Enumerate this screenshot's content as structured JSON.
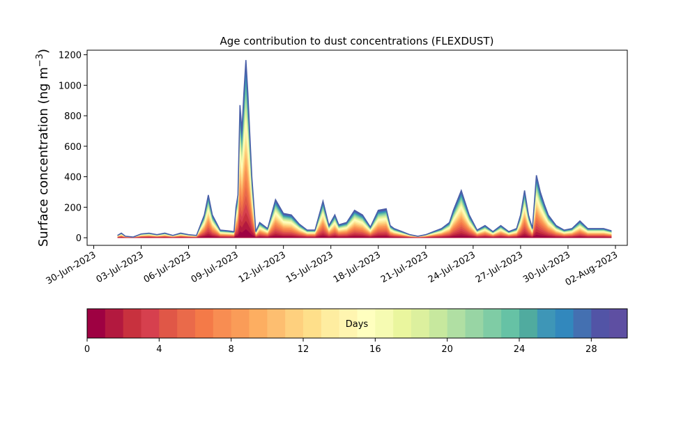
{
  "chart_data": {
    "type": "area",
    "title": "Age contribution to dust concentrations (FLEXDUST)",
    "xlabel": "",
    "ylabel": "Surface concentration (ng m",
    "ylabel_superscript": "−3",
    "ylabel_close": ")",
    "ylim": [
      -50,
      1230
    ],
    "yticks": [
      0,
      200,
      400,
      600,
      800,
      1000,
      1200
    ],
    "xlim": [
      "2023-06-29T14:00",
      "2023-08-02T18:00"
    ],
    "xtick_labels": [
      "30-Jun-2023",
      "03-Jul-2023",
      "06-Jul-2023",
      "09-Jul-2023",
      "12-Jul-2023",
      "15-Jul-2023",
      "18-Jul-2023",
      "21-Jul-2023",
      "24-Jul-2023",
      "27-Jul-2023",
      "30-Jul-2023",
      "02-Aug-2023"
    ],
    "grid": false,
    "stack_variable": "age (days)",
    "outline_color": "#4a5fa8",
    "total": {
      "x": [
        "2023-07-01T12:00",
        "2023-07-01T18:00",
        "2023-07-02T00:00",
        "2023-07-02T12:00",
        "2023-07-03T00:00",
        "2023-07-03T12:00",
        "2023-07-04T00:00",
        "2023-07-04T12:00",
        "2023-07-05T00:00",
        "2023-07-05T12:00",
        "2023-07-06T00:00",
        "2023-07-06T12:00",
        "2023-07-07T00:00",
        "2023-07-07T06:00",
        "2023-07-07T12:00",
        "2023-07-08T00:00",
        "2023-07-08T12:00",
        "2023-07-08T21:00",
        "2023-07-09T00:00",
        "2023-07-09T03:00",
        "2023-07-09T06:00",
        "2023-07-09T09:00",
        "2023-07-09T12:00",
        "2023-07-09T15:00",
        "2023-07-09T18:00",
        "2023-07-10T00:00",
        "2023-07-10T06:00",
        "2023-07-10T12:00",
        "2023-07-11T00:00",
        "2023-07-11T12:00",
        "2023-07-12T00:00",
        "2023-07-12T12:00",
        "2023-07-13T00:00",
        "2023-07-13T12:00",
        "2023-07-14T00:00",
        "2023-07-14T12:00",
        "2023-07-14T21:00",
        "2023-07-15T06:00",
        "2023-07-15T12:00",
        "2023-07-16T00:00",
        "2023-07-16T12:00",
        "2023-07-17T00:00",
        "2023-07-17T12:00",
        "2023-07-18T00:00",
        "2023-07-18T12:00",
        "2023-07-18T18:00",
        "2023-07-19T00:00",
        "2023-07-19T12:00",
        "2023-07-20T00:00",
        "2023-07-20T12:00",
        "2023-07-21T00:00",
        "2023-07-21T12:00",
        "2023-07-22T00:00",
        "2023-07-22T12:00",
        "2023-07-22T18:00",
        "2023-07-23T06:00",
        "2023-07-23T18:00",
        "2023-07-24T06:00",
        "2023-07-24T18:00",
        "2023-07-25T06:00",
        "2023-07-25T18:00",
        "2023-07-26T06:00",
        "2023-07-26T18:00",
        "2023-07-27T00:00",
        "2023-07-27T06:00",
        "2023-07-27T12:00",
        "2023-07-27T18:00",
        "2023-07-28T00:00",
        "2023-07-28T06:00",
        "2023-07-28T12:00",
        "2023-07-28T18:00",
        "2023-07-29T06:00",
        "2023-07-29T18:00",
        "2023-07-30T06:00",
        "2023-07-30T18:00",
        "2023-07-31T06:00",
        "2023-07-31T18:00",
        "2023-08-01T06:00",
        "2023-08-01T18:00"
      ],
      "y": [
        15,
        30,
        10,
        5,
        25,
        30,
        20,
        30,
        15,
        30,
        20,
        15,
        150,
        280,
        150,
        50,
        45,
        40,
        200,
        280,
        870,
        700,
        950,
        1165,
        950,
        400,
        40,
        100,
        60,
        250,
        160,
        150,
        90,
        50,
        50,
        240,
        80,
        150,
        85,
        100,
        180,
        150,
        70,
        180,
        190,
        80,
        60,
        40,
        20,
        10,
        20,
        40,
        60,
        100,
        180,
        310,
        150,
        50,
        80,
        40,
        80,
        40,
        60,
        150,
        310,
        150,
        60,
        410,
        300,
        220,
        150,
        80,
        50,
        60,
        110,
        60,
        60,
        60,
        45
      ]
    },
    "colorbar": {
      "label": "Days",
      "ticks": [
        0,
        4,
        8,
        12,
        16,
        20,
        24,
        28
      ],
      "range": [
        0,
        30
      ],
      "colors": [
        "#9e0142",
        "#b3193f",
        "#c8313e",
        "#d6404e",
        "#e05747",
        "#ea6a4a",
        "#f47a48",
        "#f88d52",
        "#fa9c58",
        "#fdae61",
        "#fdbe70",
        "#fed07e",
        "#fedf8a",
        "#feeda0",
        "#fff5b0",
        "#ffffbf",
        "#f6fbb2",
        "#eaf69e",
        "#dcf09e",
        "#c7e89e",
        "#b0dfa3",
        "#98d5a4",
        "#7fcca5",
        "#66c2a5",
        "#50ab9f",
        "#3e96b7",
        "#3288bd",
        "#4470b1",
        "#5254a6",
        "#5e4fa2"
      ]
    }
  }
}
